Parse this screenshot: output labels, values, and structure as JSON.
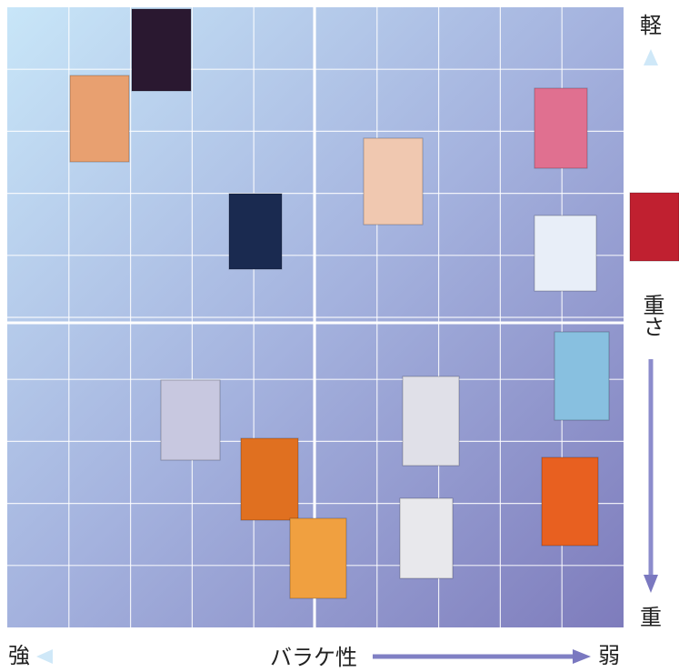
{
  "axis": {
    "top": "軽",
    "middle": "重さ",
    "bottom": "重",
    "left": "強",
    "center": "バラケ性",
    "right": "弱"
  }
}
